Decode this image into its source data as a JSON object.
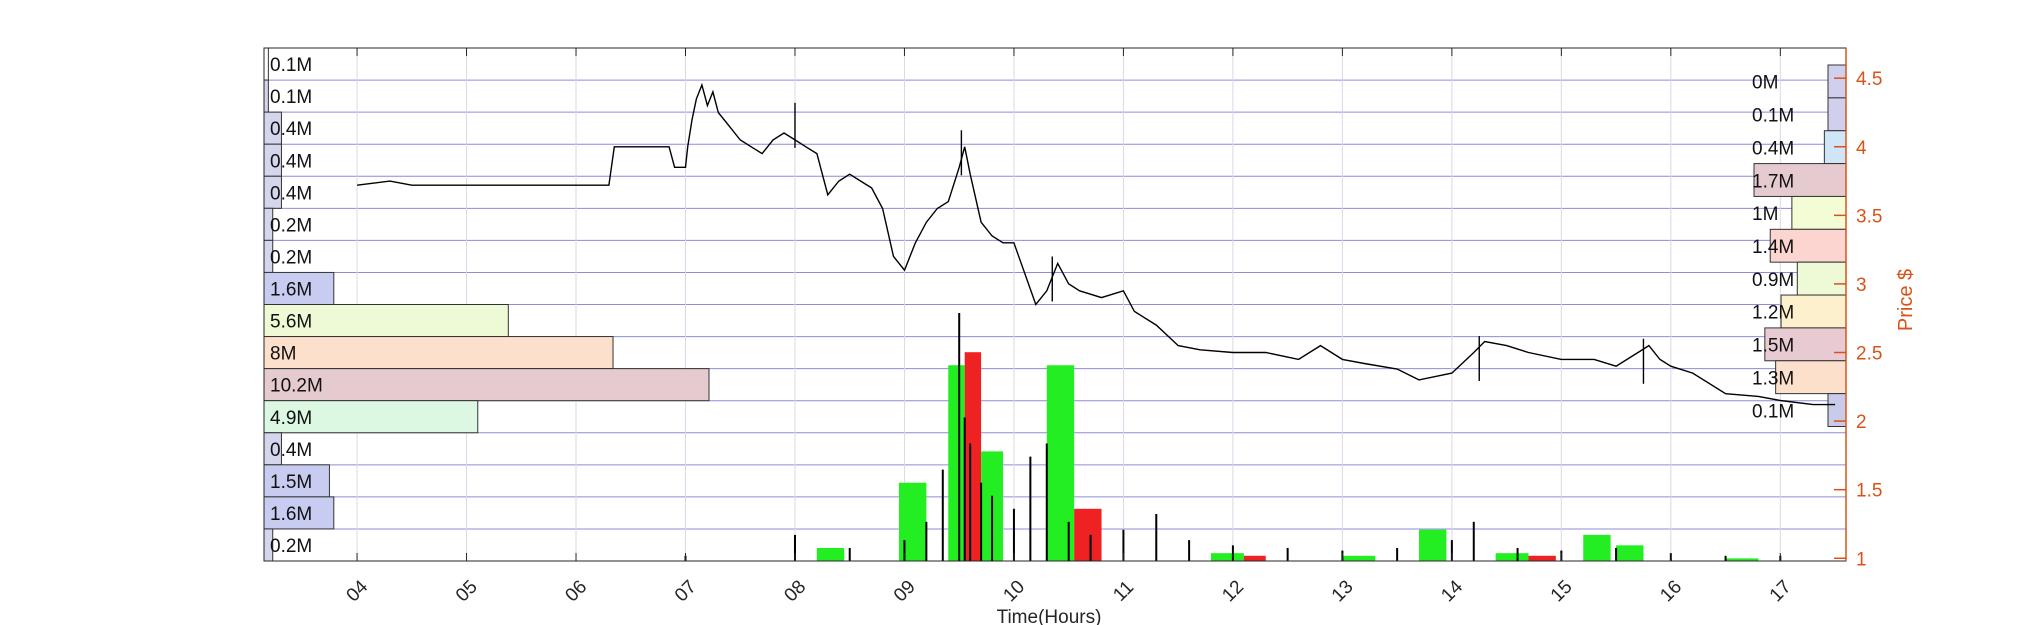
{
  "chart_data": {
    "type": "line",
    "xlabel": "Time(Hours)",
    "ylabel": "Price $",
    "x_tick_labels": [
      "04",
      "05",
      "06",
      "07",
      "08",
      "09",
      "10",
      "11",
      "12",
      "13",
      "14",
      "15",
      "16",
      "17"
    ],
    "x_tick_values": [
      4,
      5,
      6,
      7,
      8,
      9,
      10,
      11,
      12,
      13,
      14,
      15,
      16,
      17
    ],
    "xlim": [
      3.15,
      17.6
    ],
    "y_right_ticks": [
      "1",
      "1.5",
      "2",
      "2.5",
      "3",
      "3.5",
      "4",
      "4.5"
    ],
    "y_right_values": [
      1,
      1.5,
      2,
      2.5,
      3,
      3.5,
      4,
      4.5
    ],
    "ylim": [
      0.98,
      4.72
    ],
    "grid": true,
    "colors": {
      "price_line": "#000000",
      "axis_right": "#d95319",
      "grid": "#8c8cd9",
      "buy_volume": "#22ee22",
      "sell_volume": "#ee2222"
    },
    "price_series": {
      "name": "Price",
      "points": [
        [
          4.0,
          3.72
        ],
        [
          4.3,
          3.75
        ],
        [
          4.5,
          3.72
        ],
        [
          5.0,
          3.72
        ],
        [
          5.5,
          3.72
        ],
        [
          6.3,
          3.72
        ],
        [
          6.35,
          4.0
        ],
        [
          6.85,
          4.0
        ],
        [
          6.9,
          3.85
        ],
        [
          7.0,
          3.85
        ],
        [
          7.02,
          4.0
        ],
        [
          7.06,
          4.2
        ],
        [
          7.1,
          4.35
        ],
        [
          7.15,
          4.45
        ],
        [
          7.2,
          4.3
        ],
        [
          7.25,
          4.4
        ],
        [
          7.3,
          4.25
        ],
        [
          7.4,
          4.15
        ],
        [
          7.5,
          4.05
        ],
        [
          7.6,
          4.0
        ],
        [
          7.7,
          3.95
        ],
        [
          7.8,
          4.05
        ],
        [
          7.9,
          4.1
        ],
        [
          8.0,
          4.05
        ],
        [
          8.1,
          4.0
        ],
        [
          8.2,
          3.95
        ],
        [
          8.3,
          3.65
        ],
        [
          8.4,
          3.75
        ],
        [
          8.5,
          3.8
        ],
        [
          8.6,
          3.75
        ],
        [
          8.7,
          3.7
        ],
        [
          8.8,
          3.55
        ],
        [
          8.9,
          3.2
        ],
        [
          9.0,
          3.1
        ],
        [
          9.1,
          3.3
        ],
        [
          9.2,
          3.45
        ],
        [
          9.3,
          3.55
        ],
        [
          9.4,
          3.6
        ],
        [
          9.5,
          3.85
        ],
        [
          9.55,
          4.0
        ],
        [
          9.6,
          3.8
        ],
        [
          9.7,
          3.45
        ],
        [
          9.8,
          3.35
        ],
        [
          9.9,
          3.3
        ],
        [
          10.0,
          3.3
        ],
        [
          10.2,
          2.85
        ],
        [
          10.3,
          2.95
        ],
        [
          10.4,
          3.15
        ],
        [
          10.5,
          3.0
        ],
        [
          10.6,
          2.95
        ],
        [
          10.8,
          2.9
        ],
        [
          11.0,
          2.95
        ],
        [
          11.1,
          2.8
        ],
        [
          11.3,
          2.7
        ],
        [
          11.5,
          2.55
        ],
        [
          11.7,
          2.52
        ],
        [
          12.0,
          2.5
        ],
        [
          12.3,
          2.5
        ],
        [
          12.6,
          2.45
        ],
        [
          12.8,
          2.55
        ],
        [
          13.0,
          2.45
        ],
        [
          13.2,
          2.42
        ],
        [
          13.5,
          2.38
        ],
        [
          13.7,
          2.3
        ],
        [
          14.0,
          2.35
        ],
        [
          14.2,
          2.5
        ],
        [
          14.3,
          2.58
        ],
        [
          14.5,
          2.55
        ],
        [
          14.7,
          2.5
        ],
        [
          15.0,
          2.45
        ],
        [
          15.3,
          2.45
        ],
        [
          15.5,
          2.4
        ],
        [
          15.7,
          2.5
        ],
        [
          15.8,
          2.55
        ],
        [
          15.9,
          2.45
        ],
        [
          16.0,
          2.4
        ],
        [
          16.2,
          2.35
        ],
        [
          16.5,
          2.2
        ],
        [
          16.8,
          2.18
        ],
        [
          17.0,
          2.15
        ],
        [
          17.3,
          2.12
        ],
        [
          17.5,
          2.12
        ]
      ]
    },
    "price_spikes": [
      [
        8.0,
        4.32
      ],
      [
        9.52,
        4.12
      ],
      [
        10.35,
        3.2
      ],
      [
        14.25,
        2.62
      ],
      [
        15.75,
        2.6
      ]
    ],
    "volume_spikes": [
      [
        7.0,
        0.02
      ],
      [
        8.0,
        0.1
      ],
      [
        8.5,
        0.05
      ],
      [
        9.0,
        0.08
      ],
      [
        9.2,
        0.15
      ],
      [
        9.35,
        0.35
      ],
      [
        9.5,
        0.95
      ],
      [
        9.55,
        0.55
      ],
      [
        9.6,
        0.45
      ],
      [
        9.7,
        0.3
      ],
      [
        9.8,
        0.25
      ],
      [
        10.0,
        0.2
      ],
      [
        10.15,
        0.4
      ],
      [
        10.3,
        0.45
      ],
      [
        10.5,
        0.15
      ],
      [
        10.7,
        0.1
      ],
      [
        11.0,
        0.12
      ],
      [
        11.3,
        0.18
      ],
      [
        11.6,
        0.08
      ],
      [
        12.0,
        0.06
      ],
      [
        12.5,
        0.05
      ],
      [
        13.0,
        0.04
      ],
      [
        13.5,
        0.05
      ],
      [
        14.0,
        0.08
      ],
      [
        14.2,
        0.15
      ],
      [
        14.6,
        0.05
      ],
      [
        15.0,
        0.04
      ],
      [
        15.5,
        0.05
      ],
      [
        16.0,
        0.03
      ],
      [
        16.5,
        0.02
      ],
      [
        17.0,
        0.02
      ]
    ],
    "volume_bars": [
      {
        "x0": 8.2,
        "x1": 8.45,
        "h": 0.05,
        "color": "#22ee22"
      },
      {
        "x0": 8.95,
        "x1": 9.2,
        "h": 0.3,
        "color": "#22ee22"
      },
      {
        "x0": 9.4,
        "x1": 9.55,
        "h": 0.75,
        "color": "#22ee22"
      },
      {
        "x0": 9.55,
        "x1": 9.7,
        "h": 0.8,
        "color": "#ee2222"
      },
      {
        "x0": 9.7,
        "x1": 9.9,
        "h": 0.42,
        "color": "#22ee22"
      },
      {
        "x0": 10.3,
        "x1": 10.55,
        "h": 0.75,
        "color": "#22ee22"
      },
      {
        "x0": 10.55,
        "x1": 10.8,
        "h": 0.2,
        "color": "#ee2222"
      },
      {
        "x0": 11.8,
        "x1": 12.1,
        "h": 0.03,
        "color": "#22ee22"
      },
      {
        "x0": 12.1,
        "x1": 12.3,
        "h": 0.02,
        "color": "#ee2222"
      },
      {
        "x0": 13.0,
        "x1": 13.3,
        "h": 0.02,
        "color": "#22ee22"
      },
      {
        "x0": 13.7,
        "x1": 13.95,
        "h": 0.12,
        "color": "#22ee22"
      },
      {
        "x0": 14.4,
        "x1": 14.7,
        "h": 0.03,
        "color": "#22ee22"
      },
      {
        "x0": 14.7,
        "x1": 14.95,
        "h": 0.02,
        "color": "#ee2222"
      },
      {
        "x0": 15.2,
        "x1": 15.45,
        "h": 0.1,
        "color": "#22ee22"
      },
      {
        "x0": 15.5,
        "x1": 15.75,
        "h": 0.06,
        "color": "#22ee22"
      },
      {
        "x0": 16.5,
        "x1": 16.8,
        "h": 0.01,
        "color": "#22ee22"
      }
    ],
    "left_volume_profile": [
      {
        "label": "0.1M",
        "value": 0.1,
        "color": "#ffffff"
      },
      {
        "label": "0.1M",
        "value": 0.1,
        "color": "#d5d5ee"
      },
      {
        "label": "0.4M",
        "value": 0.4,
        "color": "#d5d5ee"
      },
      {
        "label": "0.4M",
        "value": 0.4,
        "color": "#d5d5ee"
      },
      {
        "label": "0.4M",
        "value": 0.4,
        "color": "#d5d5ee"
      },
      {
        "label": "0.2M",
        "value": 0.2,
        "color": "#d5d5ee"
      },
      {
        "label": "0.2M",
        "value": 0.2,
        "color": "#d5d5ee"
      },
      {
        "label": "1.6M",
        "value": 1.6,
        "color": "#c8ccf0"
      },
      {
        "label": "5.6M",
        "value": 5.6,
        "color": "#eefad5"
      },
      {
        "label": "8M",
        "value": 8.0,
        "color": "#fde0cc"
      },
      {
        "label": "10.2M",
        "value": 10.2,
        "color": "#e5cacf"
      },
      {
        "label": "4.9M",
        "value": 4.9,
        "color": "#dcf8e2"
      },
      {
        "label": "0.4M",
        "value": 0.4,
        "color": "#d5d5ee"
      },
      {
        "label": "1.5M",
        "value": 1.5,
        "color": "#c8ccf0"
      },
      {
        "label": "1.6M",
        "value": 1.6,
        "color": "#c8ccf0"
      },
      {
        "label": "0.2M",
        "value": 0.2,
        "color": "#d5d5ee"
      }
    ],
    "right_volume_profile": [
      {
        "label": "0M",
        "value": 0.0,
        "color": "#d0d0ee"
      },
      {
        "label": "0.1M",
        "value": 0.1,
        "color": "#d0d0ee"
      },
      {
        "label": "0.4M",
        "value": 0.4,
        "color": "#cfe5f8"
      },
      {
        "label": "1.7M",
        "value": 1.7,
        "color": "#e5cacf"
      },
      {
        "label": "1M",
        "value": 1.0,
        "color": "#f3fcd5"
      },
      {
        "label": "1.4M",
        "value": 1.4,
        "color": "#fcd5d0"
      },
      {
        "label": "0.9M",
        "value": 0.9,
        "color": "#eefad5"
      },
      {
        "label": "1.2M",
        "value": 1.2,
        "color": "#fdf0cc"
      },
      {
        "label": "1.5M",
        "value": 1.5,
        "color": "#e8cbd2"
      },
      {
        "label": "1.3M",
        "value": 1.3,
        "color": "#fde0cc"
      },
      {
        "label": "0.1M",
        "value": 0.1,
        "color": "#c8cce8"
      }
    ]
  }
}
